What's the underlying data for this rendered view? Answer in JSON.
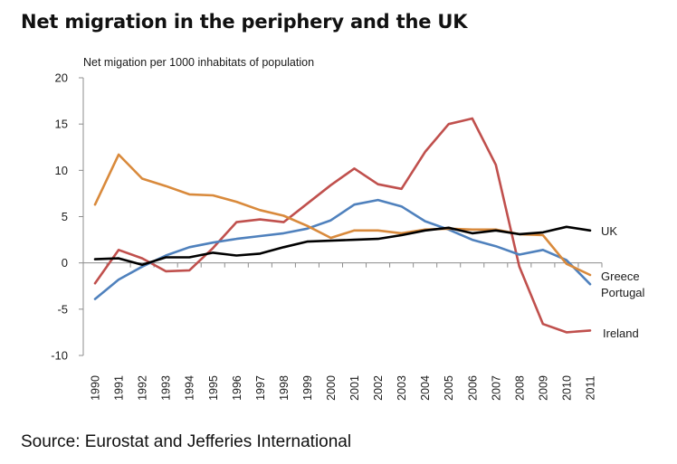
{
  "header": {
    "title": "Net migration in the periphery and the UK"
  },
  "footer": {
    "source": "Source: Eurostat and Jefferies International"
  },
  "chart_data": {
    "type": "line",
    "title": "Net migration in the periphery and the UK",
    "ylabel": "Net migation per 1000 inhabitats of population",
    "xlabel": "",
    "ylim": [
      -10,
      20
    ],
    "yticks": [
      "20",
      "15",
      "10",
      "5",
      "0",
      "-5",
      "-10"
    ],
    "categories": [
      "1990",
      "1991",
      "1992",
      "1993",
      "1994",
      "1995",
      "1996",
      "1997",
      "1998",
      "1999",
      "2000",
      "2001",
      "2002",
      "2003",
      "2004",
      "2005",
      "2006",
      "2007",
      "2008",
      "2009",
      "2010",
      "2011"
    ],
    "grid": false,
    "legend": "inline labels at right end of each series",
    "series": [
      {
        "name": "UK",
        "color": "#000000",
        "values": [
          0.4,
          0.5,
          -0.2,
          0.6,
          0.6,
          1.1,
          0.8,
          1.0,
          1.7,
          2.3,
          2.4,
          2.5,
          2.6,
          3.0,
          3.5,
          3.8,
          3.2,
          3.5,
          3.1,
          3.3,
          3.9,
          3.5
        ]
      },
      {
        "name": "Greece",
        "color": "#d98a3c",
        "values": [
          6.3,
          11.7,
          9.1,
          8.3,
          7.4,
          7.3,
          6.6,
          5.7,
          5.1,
          4.0,
          2.7,
          3.5,
          3.5,
          3.2,
          3.6,
          3.7,
          3.6,
          3.6,
          3.1,
          3.0,
          -0.1,
          -1.3
        ]
      },
      {
        "name": "Portugal",
        "color": "#4f81bd",
        "values": [
          -3.9,
          -1.8,
          -0.4,
          0.8,
          1.7,
          2.2,
          2.6,
          2.9,
          3.2,
          3.7,
          4.6,
          6.3,
          6.8,
          6.1,
          4.5,
          3.6,
          2.5,
          1.8,
          0.9,
          1.4,
          0.3,
          -2.3
        ]
      },
      {
        "name": "Ireland",
        "color": "#c0504d",
        "values": [
          -2.2,
          1.4,
          0.5,
          -0.9,
          -0.8,
          1.6,
          4.4,
          4.7,
          4.4,
          6.4,
          8.4,
          10.2,
          8.5,
          8.0,
          12.0,
          15.0,
          15.6,
          10.6,
          -0.4,
          -6.6,
          -7.5,
          -7.3
        ]
      }
    ]
  }
}
